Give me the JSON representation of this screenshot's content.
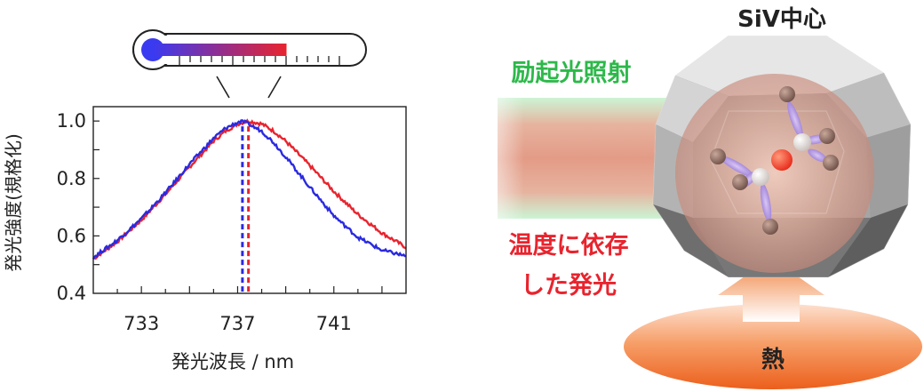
{
  "chart_data": {
    "type": "line",
    "xlabel": "発光波長 / nm",
    "ylabel": "発光強度(規格化)",
    "xlim": [
      731,
      744
    ],
    "ylim": [
      0.4,
      1.05
    ],
    "xticks": [
      "733",
      "737",
      "741"
    ],
    "xtick_values": [
      733,
      737,
      741
    ],
    "yticks": [
      "0.4",
      "0.6",
      "0.8",
      "1.0"
    ],
    "ytick_values": [
      0.4,
      0.6,
      0.8,
      1.0
    ],
    "grid": false,
    "series": [
      {
        "color": "#e8242e",
        "peak": 737.45,
        "x": [
          731.0,
          732.0,
          733.0,
          734.0,
          735.0,
          736.0,
          736.5,
          737.0,
          737.45,
          738.0,
          738.5,
          739.0,
          740.0,
          741.0,
          742.0,
          743.0,
          744.0
        ],
        "y": [
          0.52,
          0.58,
          0.655,
          0.745,
          0.84,
          0.93,
          0.965,
          0.99,
          1.0,
          0.99,
          0.965,
          0.93,
          0.845,
          0.755,
          0.675,
          0.61,
          0.56
        ]
      },
      {
        "color": "#2a2ae0",
        "peak": 737.2,
        "x": [
          731.0,
          732.0,
          733.0,
          734.0,
          735.0,
          736.0,
          736.5,
          737.0,
          737.2,
          738.0,
          738.5,
          739.0,
          740.0,
          741.0,
          742.0,
          743.0,
          744.0
        ],
        "y": [
          0.525,
          0.585,
          0.66,
          0.75,
          0.85,
          0.94,
          0.975,
          0.995,
          1.0,
          0.965,
          0.925,
          0.875,
          0.77,
          0.67,
          0.595,
          0.55,
          0.53
        ]
      }
    ]
  },
  "labels": {
    "center_title": "SiV中心",
    "excitation": "励起光照射",
    "emission_line1": "温度に依存",
    "emission_line2": "した発光",
    "heat": "熱"
  },
  "colors": {
    "excitation": "#2db84a",
    "emission": "#e8242e",
    "heat_top": "#fbd2b8",
    "heat_bottom": "#ee6a24",
    "beam_red": "#e39b86",
    "beam_green": "#c7f2cf"
  },
  "thermometer": {
    "fill_level": 0.66,
    "colors": [
      "#3a3af0",
      "#e8242e"
    ]
  }
}
